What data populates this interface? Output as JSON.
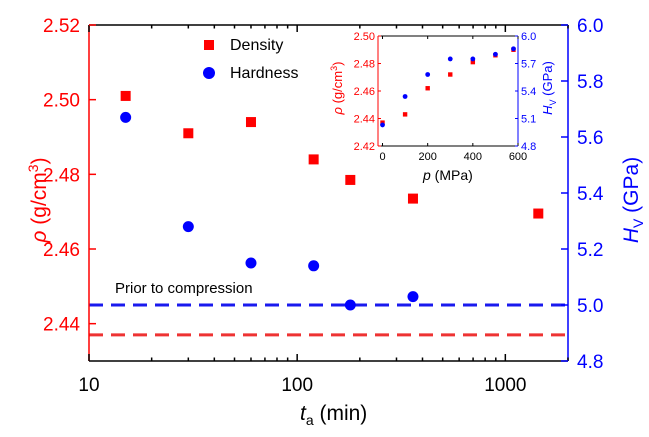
{
  "colors": {
    "density": "#ff0000",
    "hardness": "#0000ff",
    "axis": "#000000",
    "ref_density": "#ee3333",
    "ref_hardness": "#1a1aee"
  },
  "chart_data": [
    {
      "type": "scatter",
      "x_scale": "log",
      "xlim": [
        10,
        2000
      ],
      "ylim_left": [
        2.43,
        2.52
      ],
      "ylim_right": [
        4.8,
        6.0
      ],
      "x_ticks": [
        {
          "value": 10,
          "label": "10"
        },
        {
          "value": 100,
          "label": "100"
        },
        {
          "value": 1000,
          "label": "1000"
        }
      ],
      "y_left_ticks": [
        {
          "value": 2.44,
          "label": "2.44"
        },
        {
          "value": 2.46,
          "label": "2.46"
        },
        {
          "value": 2.48,
          "label": "2.48"
        },
        {
          "value": 2.5,
          "label": "2.50"
        },
        {
          "value": 2.52,
          "label": "2.52"
        }
      ],
      "y_right_ticks": [
        {
          "value": 4.8,
          "label": "4.8"
        },
        {
          "value": 5.0,
          "label": "5.0"
        },
        {
          "value": 5.2,
          "label": "5.2"
        },
        {
          "value": 5.4,
          "label": "5.4"
        },
        {
          "value": 5.6,
          "label": "5.6"
        },
        {
          "value": 5.8,
          "label": "5.8"
        },
        {
          "value": 6.0,
          "label": "6.0"
        }
      ],
      "xlabel": {
        "symbol": "t",
        "subscript": "a",
        "unit": " (min)"
      },
      "ylabel_left": {
        "symbol": "ρ",
        "unit": " (g/cm",
        "sup": "3",
        "close": ")"
      },
      "ylabel_right": {
        "symbol": "H",
        "subscript": "V",
        "unit": " (GPa)"
      },
      "legend": [
        "Density",
        "Hardness"
      ],
      "legend_position": "top-center",
      "annotation": "Prior to compression",
      "series": [
        {
          "name": "Density",
          "axis": "left",
          "marker": "square",
          "x": [
            15,
            30,
            60,
            120,
            180,
            360,
            1440
          ],
          "y": [
            2.501,
            2.491,
            2.494,
            2.484,
            2.4785,
            2.4735,
            2.4695
          ]
        },
        {
          "name": "Hardness",
          "axis": "right",
          "marker": "circle",
          "x": [
            15,
            30,
            60,
            120,
            180,
            360
          ],
          "y": [
            5.67,
            5.28,
            5.15,
            5.14,
            5.0,
            5.03
          ]
        }
      ],
      "reference_lines": [
        {
          "series": "Density",
          "axis": "left",
          "y": 2.437
        },
        {
          "series": "Hardness",
          "axis": "right",
          "y": 5.0
        }
      ]
    },
    {
      "type": "scatter",
      "position": "inset-top-right",
      "xlim": [
        -20,
        600
      ],
      "ylim_left": [
        2.42,
        2.5
      ],
      "ylim_right": [
        4.8,
        6.0
      ],
      "x_ticks": [
        {
          "value": 0,
          "label": "0"
        },
        {
          "value": 200,
          "label": "200"
        },
        {
          "value": 400,
          "label": "400"
        },
        {
          "value": 600,
          "label": "600"
        }
      ],
      "y_left_ticks": [
        {
          "value": 2.42,
          "label": "2.42"
        },
        {
          "value": 2.44,
          "label": "2.44"
        },
        {
          "value": 2.46,
          "label": "2.46"
        },
        {
          "value": 2.48,
          "label": "2.48"
        },
        {
          "value": 2.5,
          "label": "2.50"
        }
      ],
      "y_right_ticks": [
        {
          "value": 4.8,
          "label": "4.8"
        },
        {
          "value": 5.1,
          "label": "5.1"
        },
        {
          "value": 5.4,
          "label": "5.4"
        },
        {
          "value": 5.7,
          "label": "5.7"
        },
        {
          "value": 6.0,
          "label": "6.0"
        }
      ],
      "xlabel": {
        "symbol": "p",
        "unit": " (MPa)"
      },
      "ylabel_left": {
        "symbol": "ρ",
        "unit": " (g/cm",
        "sup": "3",
        "close": ")"
      },
      "ylabel_right": {
        "symbol": "H",
        "subscript": "V",
        "unit": " (GPa)"
      },
      "series": [
        {
          "name": "Density",
          "axis": "left",
          "marker": "square",
          "x": [
            0,
            100,
            200,
            300,
            400,
            500,
            580
          ],
          "y": [
            2.437,
            2.443,
            2.462,
            2.472,
            2.481,
            2.486,
            2.49
          ]
        },
        {
          "name": "Hardness",
          "axis": "right",
          "marker": "circle",
          "x": [
            0,
            100,
            200,
            300,
            400,
            500,
            580
          ],
          "y": [
            5.03,
            5.34,
            5.58,
            5.75,
            5.75,
            5.8,
            5.86
          ]
        }
      ]
    }
  ]
}
